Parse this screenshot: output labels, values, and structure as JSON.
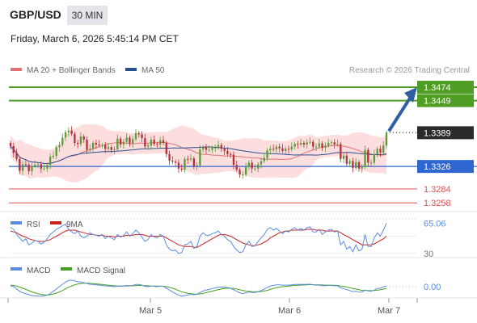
{
  "header": {
    "pair": "GBP/USD",
    "timeframe": "30 MIN",
    "datetime": "Friday, March 6, 2026 5:45:14 PM CET"
  },
  "legend": {
    "ma20_bb": "MA 20 + Bollinger Bands",
    "ma50": "MA 50",
    "source": "Research © 2026 Trading Central"
  },
  "colors": {
    "candle_up": "#5f9a3a",
    "candle_down": "#b5313b",
    "resistance": "#4f9d22",
    "support": "#2f66d0",
    "minor_support": "#e05050",
    "bollinger_fill": "#fcdada",
    "ma20": "#e07474",
    "ma50": "#2a4f91",
    "current_label_bg": "#2b2b2b",
    "arrow": "#2e5fa3",
    "rsi": "#5b8be0",
    "rsi_ma": "#cc2020",
    "macd": "#5b8be0",
    "macd_signal": "#43a020"
  },
  "chart_data": [
    {
      "type": "candlestick",
      "title": "GBP/USD",
      "timeframe": "30 MIN",
      "x_ticks": [
        "Mar 5",
        "Mar 6",
        "Mar 7"
      ],
      "ylim": [
        1.32,
        1.3505
      ],
      "levels": [
        {
          "value": 1.3474,
          "label": "1.3474",
          "kind": "resistance"
        },
        {
          "value": 1.3449,
          "label": "1.3449",
          "kind": "resistance"
        },
        {
          "value": 1.3389,
          "label": "1.3389",
          "kind": "current"
        },
        {
          "value": 1.3326,
          "label": "1.3326",
          "kind": "support"
        },
        {
          "value": 1.3284,
          "label": "1.3284",
          "kind": "minor_support"
        },
        {
          "value": 1.3258,
          "label": "1.3258",
          "kind": "minor_support"
        }
      ],
      "arrow": {
        "from": 1.3389,
        "to": 1.3474,
        "direction": "up"
      },
      "close": [
        1.3364,
        1.3351,
        1.334,
        1.3318,
        1.333,
        1.3329,
        1.3317,
        1.3327,
        1.3329,
        1.333,
        1.3322,
        1.3322,
        1.3329,
        1.3344,
        1.3346,
        1.3362,
        1.3366,
        1.338,
        1.339,
        1.3393,
        1.3387,
        1.337,
        1.3368,
        1.3382,
        1.3376,
        1.3357,
        1.3359,
        1.337,
        1.3367,
        1.3366,
        1.3366,
        1.3359,
        1.3362,
        1.3357,
        1.3358,
        1.3378,
        1.3367,
        1.3372,
        1.338,
        1.3369,
        1.3377,
        1.3388,
        1.3386,
        1.3379,
        1.3363,
        1.3365,
        1.3376,
        1.3368,
        1.3367,
        1.3375,
        1.337,
        1.3349,
        1.3337,
        1.3335,
        1.3333,
        1.3322,
        1.332,
        1.334,
        1.3339,
        1.3341,
        1.3327,
        1.3328,
        1.3358,
        1.3362,
        1.3357,
        1.3357,
        1.3361,
        1.3361,
        1.3366,
        1.3359,
        1.3355,
        1.3349,
        1.3348,
        1.3329,
        1.332,
        1.3311,
        1.3311,
        1.3325,
        1.3333,
        1.3322,
        1.3322,
        1.333,
        1.3336,
        1.3342,
        1.3356,
        1.3359,
        1.3358,
        1.3363,
        1.336,
        1.3355,
        1.3359,
        1.3358,
        1.3363,
        1.3368,
        1.3367,
        1.337,
        1.3367,
        1.3371,
        1.3372,
        1.3363,
        1.3363,
        1.3369,
        1.3361,
        1.3365,
        1.337,
        1.3371,
        1.3367,
        1.3368,
        1.334,
        1.3346,
        1.3331,
        1.3336,
        1.3323,
        1.3334,
        1.3322,
        1.3325,
        1.3357,
        1.3333,
        1.3333,
        1.3349,
        1.3359,
        1.3352,
        1.3365,
        1.3389
      ],
      "series": [
        {
          "name": "MA 20 + Bollinger Bands"
        },
        {
          "name": "MA 50"
        }
      ]
    },
    {
      "type": "line",
      "legend": [
        "RSI",
        "9MA"
      ],
      "ylim": [
        28,
        72
      ],
      "ticks": [
        "30",
        "65.06"
      ],
      "series": [
        {
          "name": "RSI",
          "values": [
            60,
            58,
            52,
            48,
            44,
            47,
            40,
            42,
            45,
            44,
            41,
            43,
            47,
            52,
            55,
            58,
            60,
            62,
            64,
            58,
            55,
            53,
            56,
            50,
            48,
            50,
            54,
            52,
            51,
            50,
            52,
            47,
            50,
            48,
            46,
            52,
            49,
            51,
            55,
            50,
            53,
            57,
            54,
            49,
            44,
            46,
            52,
            49,
            48,
            52,
            50,
            40,
            35,
            33,
            34,
            30,
            31,
            40,
            41,
            44,
            36,
            38,
            50,
            54,
            51,
            51,
            53,
            54,
            56,
            52,
            50,
            46,
            44,
            38,
            34,
            31,
            32,
            40,
            44,
            38,
            39,
            44,
            48,
            52,
            58,
            60,
            57,
            59,
            56,
            53,
            56,
            55,
            58,
            60,
            57,
            59,
            57,
            60,
            61,
            55,
            55,
            58,
            52,
            55,
            57,
            58,
            55,
            56,
            40,
            44,
            35,
            38,
            32,
            40,
            33,
            35,
            52,
            38,
            38,
            48,
            54,
            50,
            57,
            65.06
          ]
        },
        {
          "name": "9MA",
          "values": [
            56,
            55,
            54,
            52,
            50,
            49,
            47,
            46,
            45,
            44,
            44,
            44,
            45,
            46,
            48,
            50,
            52,
            54,
            56,
            57,
            57,
            57,
            56,
            55,
            54,
            53,
            52,
            52,
            51,
            51,
            51,
            50,
            50,
            50,
            49,
            50,
            50,
            50,
            51,
            51,
            51,
            52,
            52,
            52,
            51,
            50,
            50,
            50,
            50,
            50,
            50,
            48,
            46,
            44,
            42,
            40,
            39,
            38,
            38,
            38,
            37,
            37,
            39,
            41,
            43,
            45,
            47,
            49,
            51,
            52,
            52,
            51,
            50,
            48,
            46,
            44,
            42,
            41,
            40,
            39,
            39,
            40,
            41,
            43,
            45,
            48,
            50,
            52,
            54,
            55,
            56,
            56,
            57,
            57,
            57,
            57,
            57,
            58,
            58,
            58,
            57,
            57,
            57,
            56,
            56,
            56,
            56,
            56,
            54,
            52,
            50,
            48,
            46,
            44,
            42,
            40,
            40,
            40,
            40,
            41,
            43,
            45,
            47,
            50
          ]
        }
      ]
    },
    {
      "type": "line",
      "legend": [
        "MACD",
        "MACD Signal"
      ],
      "ylim": [
        -1,
        1
      ],
      "ticks": [
        "0.00"
      ],
      "series": [
        {
          "name": "MACD",
          "values": [
            0.05,
            0.0,
            -0.15,
            -0.3,
            -0.4,
            -0.45,
            -0.52,
            -0.58,
            -0.6,
            -0.62,
            -0.62,
            -0.6,
            -0.55,
            -0.45,
            -0.3,
            -0.15,
            0.0,
            0.15,
            0.3,
            0.4,
            0.42,
            0.38,
            0.32,
            0.3,
            0.26,
            0.2,
            0.15,
            0.14,
            0.12,
            0.1,
            0.08,
            0.05,
            0.04,
            0.02,
            0.0,
            0.04,
            0.02,
            0.04,
            0.08,
            0.06,
            0.08,
            0.14,
            0.14,
            0.1,
            0.02,
            0.0,
            0.04,
            0.02,
            0.0,
            0.03,
            0.02,
            -0.1,
            -0.22,
            -0.35,
            -0.45,
            -0.55,
            -0.62,
            -0.58,
            -0.55,
            -0.5,
            -0.52,
            -0.5,
            -0.38,
            -0.28,
            -0.22,
            -0.18,
            -0.12,
            -0.08,
            -0.03,
            -0.02,
            -0.03,
            -0.06,
            -0.1,
            -0.2,
            -0.3,
            -0.4,
            -0.45,
            -0.4,
            -0.35,
            -0.38,
            -0.38,
            -0.32,
            -0.25,
            -0.15,
            -0.05,
            0.04,
            0.08,
            0.12,
            0.12,
            0.1,
            0.1,
            0.1,
            0.12,
            0.14,
            0.14,
            0.15,
            0.14,
            0.15,
            0.16,
            0.12,
            0.1,
            0.1,
            0.07,
            0.07,
            0.08,
            0.08,
            0.06,
            0.06,
            -0.08,
            -0.12,
            -0.2,
            -0.25,
            -0.32,
            -0.3,
            -0.35,
            -0.36,
            -0.22,
            -0.28,
            -0.3,
            -0.22,
            -0.12,
            -0.1,
            -0.02,
            0.05
          ]
        },
        {
          "name": "MACD Signal",
          "values": [
            0.1,
            0.08,
            0.04,
            -0.02,
            -0.1,
            -0.18,
            -0.26,
            -0.34,
            -0.4,
            -0.46,
            -0.5,
            -0.53,
            -0.54,
            -0.52,
            -0.48,
            -0.42,
            -0.34,
            -0.25,
            -0.14,
            -0.04,
            0.05,
            0.12,
            0.17,
            0.2,
            0.22,
            0.22,
            0.21,
            0.2,
            0.18,
            0.16,
            0.14,
            0.12,
            0.1,
            0.08,
            0.06,
            0.05,
            0.05,
            0.04,
            0.05,
            0.05,
            0.06,
            0.07,
            0.08,
            0.08,
            0.07,
            0.06,
            0.05,
            0.04,
            0.04,
            0.03,
            0.03,
            0.0,
            -0.04,
            -0.1,
            -0.17,
            -0.25,
            -0.33,
            -0.39,
            -0.43,
            -0.46,
            -0.48,
            -0.49,
            -0.47,
            -0.43,
            -0.39,
            -0.34,
            -0.29,
            -0.24,
            -0.19,
            -0.15,
            -0.12,
            -0.1,
            -0.1,
            -0.12,
            -0.15,
            -0.2,
            -0.25,
            -0.28,
            -0.3,
            -0.32,
            -0.33,
            -0.33,
            -0.32,
            -0.28,
            -0.24,
            -0.18,
            -0.12,
            -0.07,
            -0.03,
            0.0,
            0.02,
            0.04,
            0.06,
            0.08,
            0.09,
            0.1,
            0.11,
            0.12,
            0.13,
            0.13,
            0.12,
            0.12,
            0.11,
            0.1,
            0.1,
            0.09,
            0.09,
            0.08,
            0.05,
            0.02,
            -0.02,
            -0.07,
            -0.12,
            -0.16,
            -0.2,
            -0.24,
            -0.24,
            -0.25,
            -0.26,
            -0.25,
            -0.23,
            -0.2,
            -0.16,
            -0.12
          ]
        }
      ]
    }
  ]
}
